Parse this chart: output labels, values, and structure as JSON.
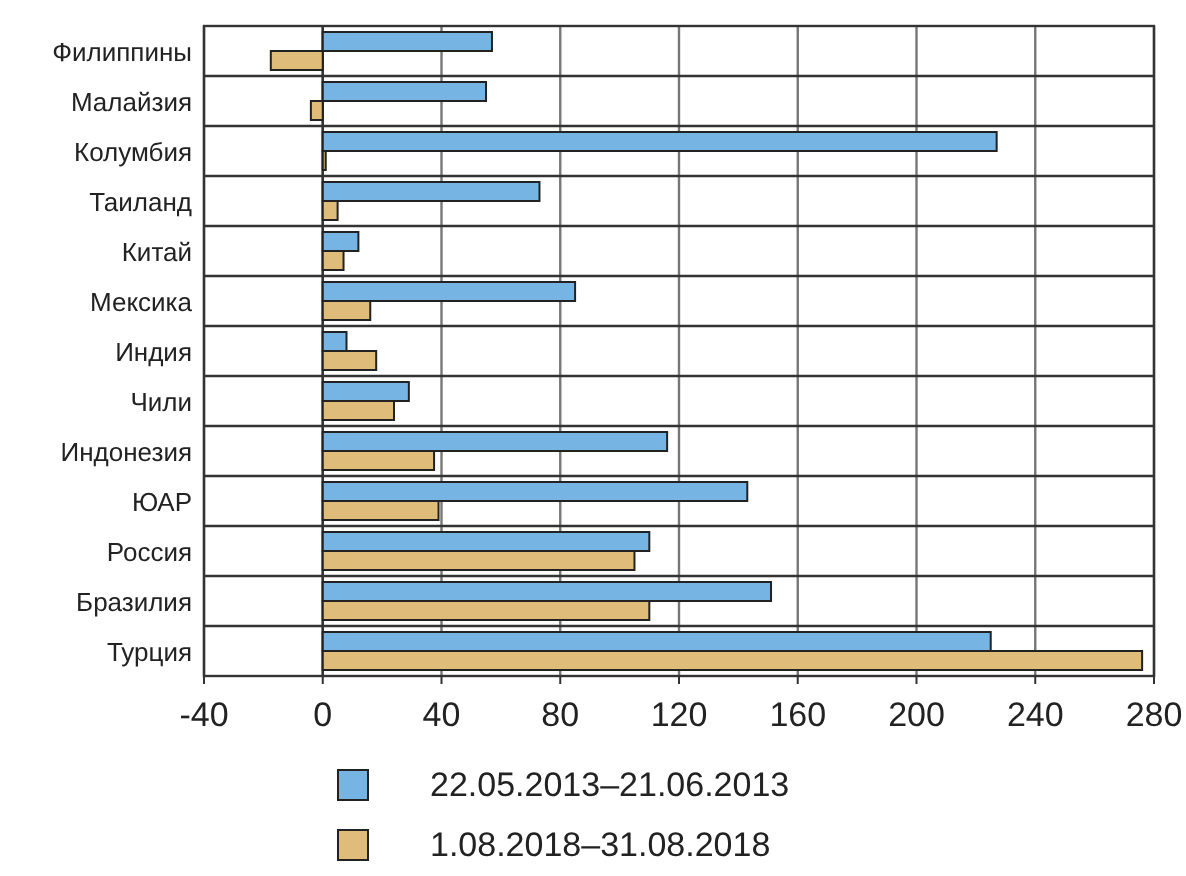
{
  "chart_data": {
    "type": "bar",
    "orientation": "horizontal",
    "categories": [
      "Филиппины",
      "Малайзия",
      "Колумбия",
      "Таиланд",
      "Китай",
      "Мексика",
      "Индия",
      "Чили",
      "Индонезия",
      "ЮАР",
      "Россия",
      "Бразилия",
      "Турция"
    ],
    "series": [
      {
        "name": "22.05.2013–21.06.2013",
        "color": "#75b4e3",
        "values": [
          57,
          55,
          227,
          73,
          12,
          85,
          8,
          29,
          116,
          143,
          110,
          151,
          225
        ]
      },
      {
        "name": "1.08.2018–31.08.2018",
        "color": "#dfbc79",
        "values": [
          -17.5,
          -4,
          1,
          5,
          7,
          16,
          18,
          24,
          37.5,
          39,
          105,
          110,
          276
        ]
      }
    ],
    "xlim": [
      -40,
      280
    ],
    "xticks": [
      -40,
      0,
      40,
      80,
      120,
      160,
      200,
      240,
      280
    ],
    "grid": true,
    "legend": "bottom"
  }
}
